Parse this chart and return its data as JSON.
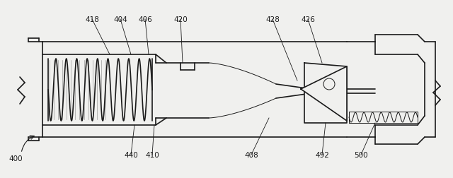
{
  "bg_color": "#f0f0ee",
  "line_color": "#1a1a1a",
  "label_color": "#1a1a1a",
  "figsize": [
    6.4,
    2.53
  ],
  "dpi": 100
}
